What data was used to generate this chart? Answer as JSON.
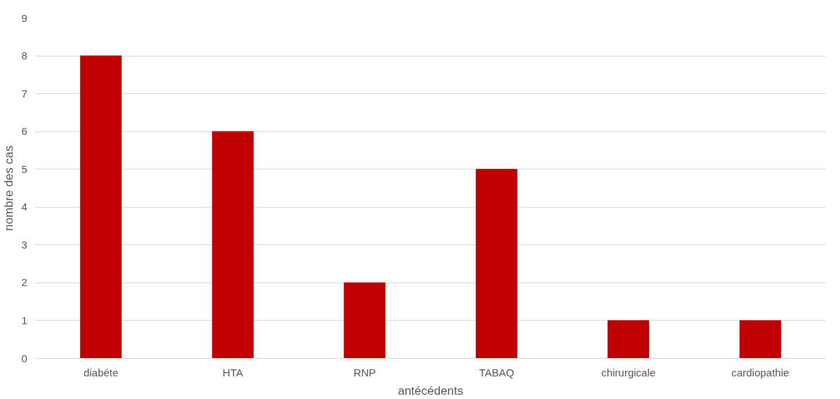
{
  "chart_data": {
    "type": "bar",
    "xlabel": "antécédents",
    "ylabel": "nombre des cas",
    "categories": [
      "diabéte",
      "HTA",
      "RNP",
      "TABAQ",
      "chirurgicale",
      "cardiopathie"
    ],
    "values": [
      8,
      6,
      2,
      5,
      1,
      1
    ],
    "color": "#c00000",
    "ylim": [
      0,
      9
    ],
    "yticks": [
      0,
      1,
      2,
      3,
      4,
      5,
      6,
      7,
      8,
      9
    ],
    "grid": "y"
  }
}
